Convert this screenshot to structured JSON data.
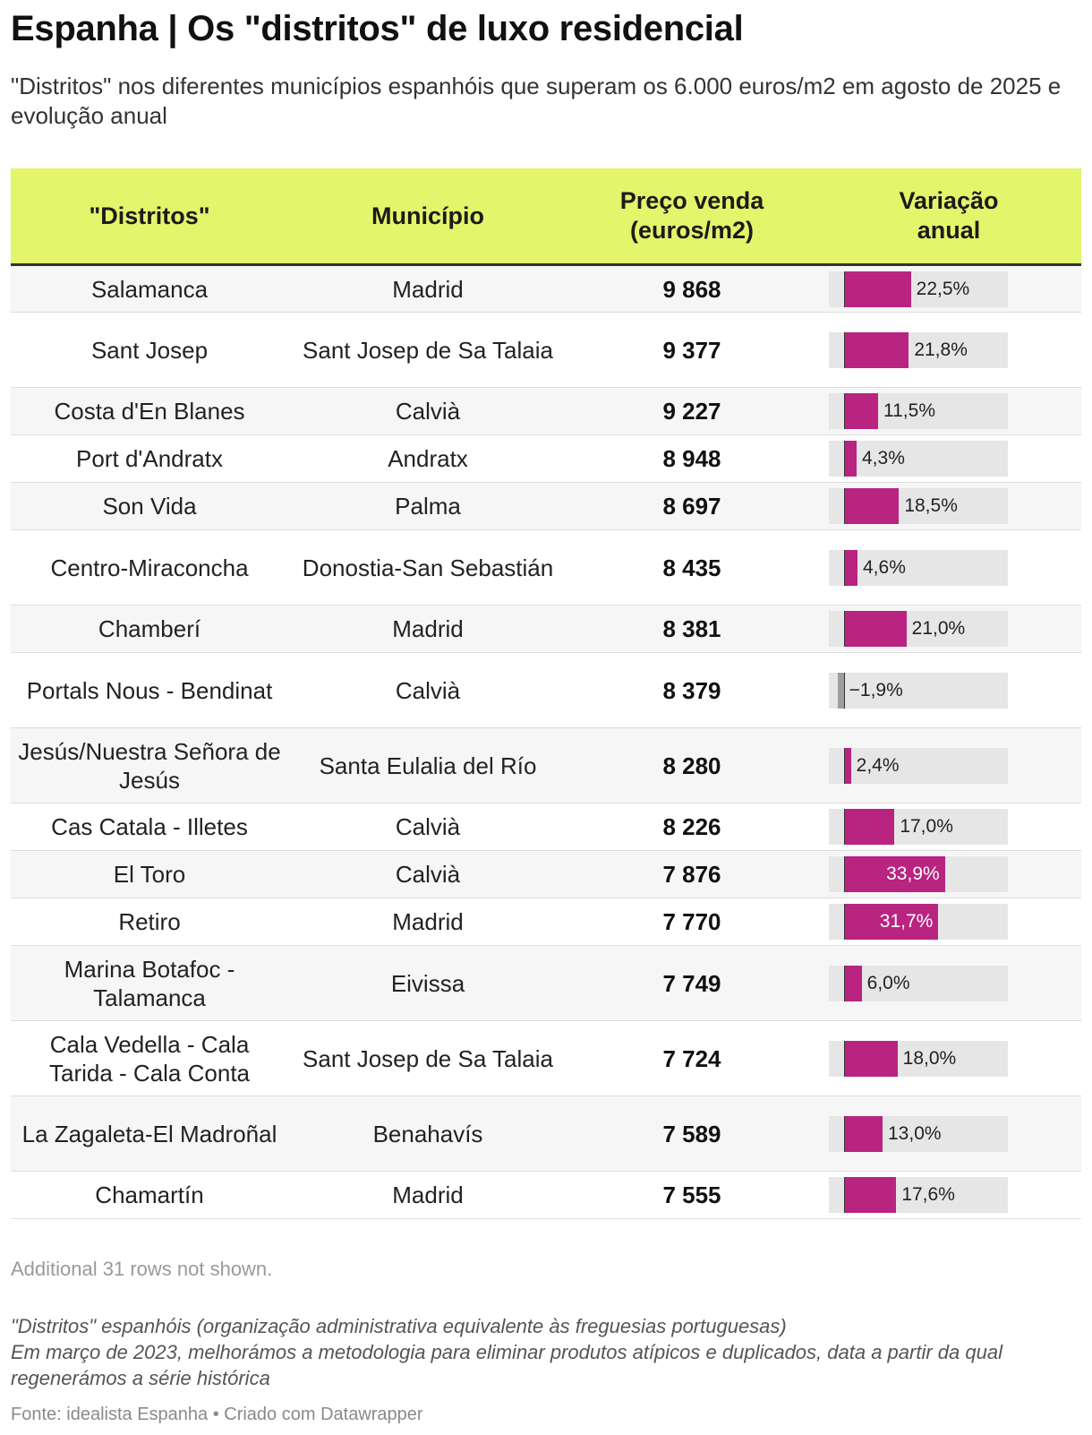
{
  "title": "Espanha | Os \"distritos\" de luxo residencial",
  "subtitle": "\"Distritos\" nos diferentes municípios espanhóis que superam os 6.000 euros/m2 em agosto de 2025 e evolução anual",
  "colors": {
    "header_bg": "#e2f56b",
    "positive_bar": "#b8247f",
    "negative_bar": "#9e9e9e",
    "track": "#e6e6e6"
  },
  "chart_data": {
    "type": "table",
    "columns": [
      "\"Distritos\"",
      "Município",
      "Preço venda (euros/m2)",
      "Variação anual"
    ],
    "columns_lines": [
      [
        "\"Distritos\""
      ],
      [
        "Município"
      ],
      [
        "Preço venda",
        "(euros/m2)"
      ],
      [
        "Variação",
        "anual"
      ]
    ],
    "rows": [
      {
        "distrito": "Salamanca",
        "municipio": "Madrid",
        "preco": "9 868",
        "variacao": 22.5,
        "variacao_label": "22,5%"
      },
      {
        "distrito": "Sant Josep",
        "municipio": "Sant Josep de Sa Talaia",
        "preco": "9 377",
        "variacao": 21.8,
        "variacao_label": "21,8%"
      },
      {
        "distrito": "Costa d'En Blanes",
        "municipio": "Calvià",
        "preco": "9 227",
        "variacao": 11.5,
        "variacao_label": "11,5%"
      },
      {
        "distrito": "Port d'Andratx",
        "municipio": "Andratx",
        "preco": "8 948",
        "variacao": 4.3,
        "variacao_label": "4,3%"
      },
      {
        "distrito": "Son Vida",
        "municipio": "Palma",
        "preco": "8 697",
        "variacao": 18.5,
        "variacao_label": "18,5%"
      },
      {
        "distrito": "Centro-Miraconcha",
        "municipio": "Donostia-San Sebastián",
        "preco": "8 435",
        "variacao": 4.6,
        "variacao_label": "4,6%"
      },
      {
        "distrito": "Chamberí",
        "municipio": "Madrid",
        "preco": "8 381",
        "variacao": 21.0,
        "variacao_label": "21,0%"
      },
      {
        "distrito": "Portals Nous - Bendinat",
        "municipio": "Calvià",
        "preco": "8 379",
        "variacao": -1.9,
        "variacao_label": "−1,9%"
      },
      {
        "distrito": "Jesús/Nuestra Señora de Jesús",
        "municipio": "Santa Eulalia del Río",
        "preco": "8 280",
        "variacao": 2.4,
        "variacao_label": "2,4%"
      },
      {
        "distrito": "Cas Catala - Illetes",
        "municipio": "Calvià",
        "preco": "8 226",
        "variacao": 17.0,
        "variacao_label": "17,0%"
      },
      {
        "distrito": "El Toro",
        "municipio": "Calvià",
        "preco": "7 876",
        "variacao": 33.9,
        "variacao_label": "33,9%"
      },
      {
        "distrito": "Retiro",
        "municipio": "Madrid",
        "preco": "7 770",
        "variacao": 31.7,
        "variacao_label": "31,7%"
      },
      {
        "distrito": "Marina Botafoc - Talamanca",
        "municipio": "Eivissa",
        "preco": "7 749",
        "variacao": 6.0,
        "variacao_label": "6,0%"
      },
      {
        "distrito": "Cala Vedella - Cala Tarida - Cala Conta",
        "municipio": "Sant Josep de Sa Talaia",
        "preco": "7 724",
        "variacao": 18.0,
        "variacao_label": "18,0%"
      },
      {
        "distrito": "La Zagaleta-El Madroñal",
        "municipio": "Benahavís",
        "preco": "7 589",
        "variacao": 13.0,
        "variacao_label": "13,0%"
      },
      {
        "distrito": "Chamartín",
        "municipio": "Madrid",
        "preco": "7 555",
        "variacao": 17.6,
        "variacao_label": "17,6%"
      }
    ],
    "variacao_range": [
      -5,
      55
    ]
  },
  "notes": {
    "rows_not_shown": "Additional 31 rows not shown.",
    "footnote_1": "\"Distritos\" espanhóis (organização administrativa equivalente às freguesias portuguesas)",
    "footnote_2": "Em março de 2023, melhorámos a metodologia para eliminar produtos atípicos e duplicados, data a partir da qual regenerámos a série histórica",
    "source": "Fonte: idealista Espanha • Criado com Datawrapper"
  }
}
